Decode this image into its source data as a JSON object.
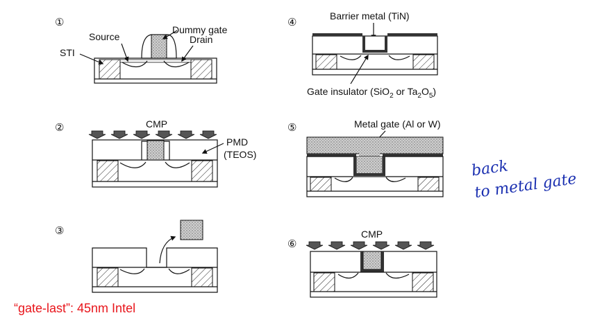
{
  "steps": [
    "①",
    "②",
    "③",
    "④",
    "⑤",
    "⑥"
  ],
  "labels": {
    "sti": "STI",
    "source": "Source",
    "dummy_gate": "Dummy gate",
    "drain": "Drain",
    "cmp_top": "CMP",
    "pmd": "PMD",
    "teos": "(TEOS)",
    "barrier_metal": "Barrier metal (TiN)",
    "gate_insulator_pre": "Gate insulator (SiO",
    "gate_insulator_sub1": "2",
    "gate_insulator_mid": " or Ta",
    "gate_insulator_sub2": "2",
    "gate_insulator_o": "O",
    "gate_insulator_sub3": "5",
    "gate_insulator_post": ")",
    "metal_gate": "Metal gate (Al or W)",
    "cmp_bottom": "CMP"
  },
  "caption": "“gate-last”: 45nm Intel",
  "annotation": {
    "line1": "back",
    "line2": "to metal gate"
  },
  "colors": {
    "caption": "#e8151b",
    "annotation": "#1a2fb0",
    "metal": "#cccccc",
    "barrier": "#222222"
  }
}
